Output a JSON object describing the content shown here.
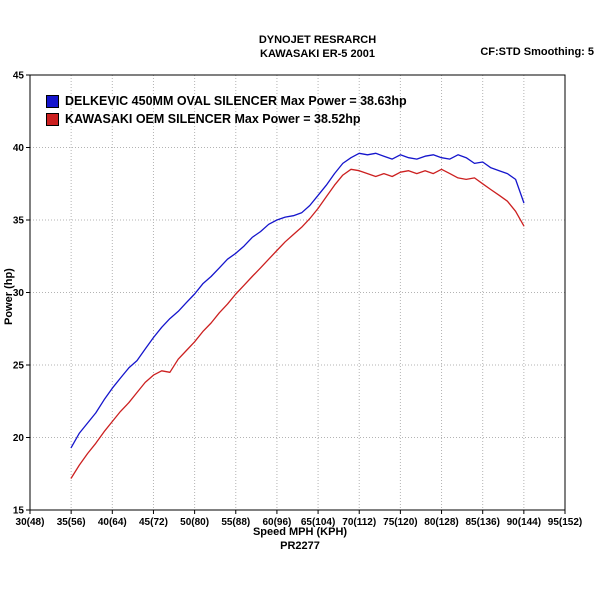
{
  "header": {
    "title_line1": "DYNOJET RESRARCH",
    "title_line2": "KAWASAKI ER-5 2001",
    "smoothing": "CF:STD Smoothing: 5"
  },
  "footer": {
    "xaxis_label": "Speed MPH (KPH)",
    "run_id": "PR2277"
  },
  "chart_data": {
    "type": "line",
    "title": "DYNOJET RESRARCH KAWASAKI ER-5 2001",
    "xlabel": "Speed MPH (KPH)",
    "ylabel": "Power (hp)",
    "xlim": [
      30,
      95
    ],
    "ylim": [
      15,
      45
    ],
    "grid": true,
    "legend_position": "top-left-inside",
    "x_ticks": [
      30,
      35,
      40,
      45,
      50,
      55,
      60,
      65,
      70,
      75,
      80,
      85,
      90,
      95
    ],
    "x_tick_labels": [
      "30(48)",
      "35(56)",
      "40(64)",
      "45(72)",
      "50(80)",
      "55(88)",
      "60(96)",
      "65(104)",
      "70(112)",
      "75(120)",
      "80(128)",
      "85(136)",
      "90(144)",
      "95(152)"
    ],
    "y_ticks": [
      15,
      20,
      25,
      30,
      35,
      40,
      45
    ],
    "y_tick_labels": [
      "15",
      "20",
      "25",
      "30",
      "35",
      "40",
      "45"
    ],
    "series": [
      {
        "name": "DELKEVIC 450MM OVAL SILENCER Max Power = 38.63hp",
        "color": "#1515cc",
        "points": [
          [
            35,
            19.3
          ],
          [
            36,
            20.3
          ],
          [
            37,
            21.0
          ],
          [
            38,
            21.7
          ],
          [
            39,
            22.6
          ],
          [
            40,
            23.4
          ],
          [
            41,
            24.1
          ],
          [
            42,
            24.8
          ],
          [
            43,
            25.3
          ],
          [
            44,
            26.1
          ],
          [
            45,
            26.9
          ],
          [
            46,
            27.6
          ],
          [
            47,
            28.2
          ],
          [
            48,
            28.7
          ],
          [
            49,
            29.3
          ],
          [
            50,
            29.9
          ],
          [
            51,
            30.6
          ],
          [
            52,
            31.1
          ],
          [
            53,
            31.7
          ],
          [
            54,
            32.3
          ],
          [
            55,
            32.7
          ],
          [
            56,
            33.2
          ],
          [
            57,
            33.8
          ],
          [
            58,
            34.2
          ],
          [
            59,
            34.7
          ],
          [
            60,
            35.0
          ],
          [
            61,
            35.2
          ],
          [
            62,
            35.3
          ],
          [
            63,
            35.5
          ],
          [
            64,
            36.0
          ],
          [
            65,
            36.7
          ],
          [
            66,
            37.4
          ],
          [
            67,
            38.2
          ],
          [
            68,
            38.9
          ],
          [
            69,
            39.3
          ],
          [
            70,
            39.6
          ],
          [
            71,
            39.5
          ],
          [
            72,
            39.6
          ],
          [
            73,
            39.4
          ],
          [
            74,
            39.2
          ],
          [
            75,
            39.5
          ],
          [
            76,
            39.3
          ],
          [
            77,
            39.2
          ],
          [
            78,
            39.4
          ],
          [
            79,
            39.5
          ],
          [
            80,
            39.3
          ],
          [
            81,
            39.2
          ],
          [
            82,
            39.5
          ],
          [
            83,
            39.3
          ],
          [
            84,
            38.9
          ],
          [
            85,
            39.0
          ],
          [
            86,
            38.6
          ],
          [
            87,
            38.4
          ],
          [
            88,
            38.2
          ],
          [
            89,
            37.8
          ],
          [
            90,
            36.2
          ]
        ]
      },
      {
        "name": "KAWASAKI OEM SILENCER Max Power = 38.52hp",
        "color": "#cc2020",
        "points": [
          [
            35,
            17.2
          ],
          [
            36,
            18.1
          ],
          [
            37,
            18.9
          ],
          [
            38,
            19.6
          ],
          [
            39,
            20.4
          ],
          [
            40,
            21.1
          ],
          [
            41,
            21.8
          ],
          [
            42,
            22.4
          ],
          [
            43,
            23.1
          ],
          [
            44,
            23.8
          ],
          [
            45,
            24.3
          ],
          [
            46,
            24.6
          ],
          [
            47,
            24.5
          ],
          [
            48,
            25.4
          ],
          [
            49,
            26.0
          ],
          [
            50,
            26.6
          ],
          [
            51,
            27.3
          ],
          [
            52,
            27.9
          ],
          [
            53,
            28.6
          ],
          [
            54,
            29.2
          ],
          [
            55,
            29.9
          ],
          [
            56,
            30.5
          ],
          [
            57,
            31.1
          ],
          [
            58,
            31.7
          ],
          [
            59,
            32.3
          ],
          [
            60,
            32.9
          ],
          [
            61,
            33.5
          ],
          [
            62,
            34.0
          ],
          [
            63,
            34.5
          ],
          [
            64,
            35.1
          ],
          [
            65,
            35.8
          ],
          [
            66,
            36.6
          ],
          [
            67,
            37.4
          ],
          [
            68,
            38.1
          ],
          [
            69,
            38.5
          ],
          [
            70,
            38.4
          ],
          [
            71,
            38.2
          ],
          [
            72,
            38.0
          ],
          [
            73,
            38.2
          ],
          [
            74,
            38.0
          ],
          [
            75,
            38.3
          ],
          [
            76,
            38.4
          ],
          [
            77,
            38.2
          ],
          [
            78,
            38.4
          ],
          [
            79,
            38.2
          ],
          [
            80,
            38.5
          ],
          [
            81,
            38.2
          ],
          [
            82,
            37.9
          ],
          [
            83,
            37.8
          ],
          [
            84,
            37.9
          ],
          [
            85,
            37.5
          ],
          [
            86,
            37.1
          ],
          [
            87,
            36.7
          ],
          [
            88,
            36.3
          ],
          [
            89,
            35.6
          ],
          [
            90,
            34.6
          ]
        ]
      }
    ]
  }
}
